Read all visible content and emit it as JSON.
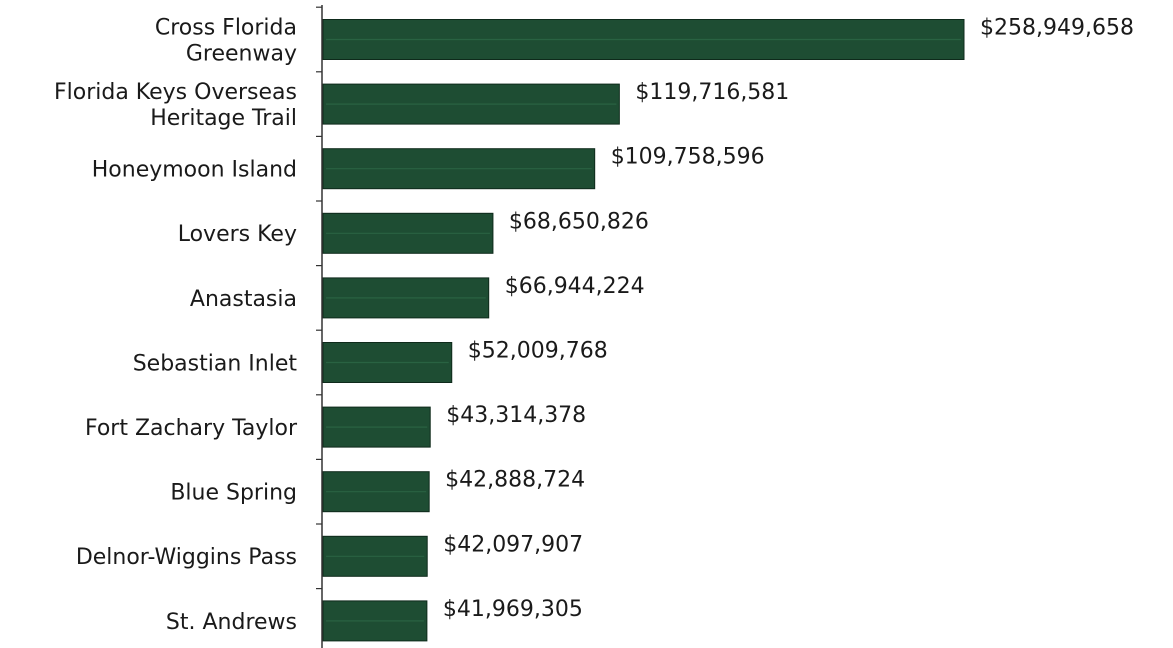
{
  "chart_data": {
    "type": "bar",
    "orientation": "horizontal",
    "categories": [
      [
        "Cross Florida",
        "Greenway"
      ],
      [
        "Florida Keys Overseas",
        "Heritage Trail"
      ],
      [
        "Honeymoon Island"
      ],
      [
        "Lovers Key"
      ],
      [
        "Anastasia"
      ],
      [
        "Sebastian Inlet"
      ],
      [
        "Fort Zachary Taylor"
      ],
      [
        "Blue Spring"
      ],
      [
        "Delnor-Wiggins Pass"
      ],
      [
        "St. Andrews"
      ]
    ],
    "values": [
      258949658,
      119716581,
      109758596,
      68650826,
      66944224,
      52009768,
      43314378,
      42888724,
      42097907,
      41969305
    ],
    "value_labels": [
      "$258,949,658",
      "$119,716,581",
      "$109,758,596",
      "$68,650,826",
      "$66,944,224",
      "$52,009,768",
      "$43,314,378",
      "$42,888,724",
      "$42,097,907",
      "$41,969,305"
    ],
    "xlim": [
      0,
      258949658
    ],
    "bar_color": "#1e4d33",
    "axis_color": "#333333",
    "grid": false,
    "legend": "none"
  }
}
